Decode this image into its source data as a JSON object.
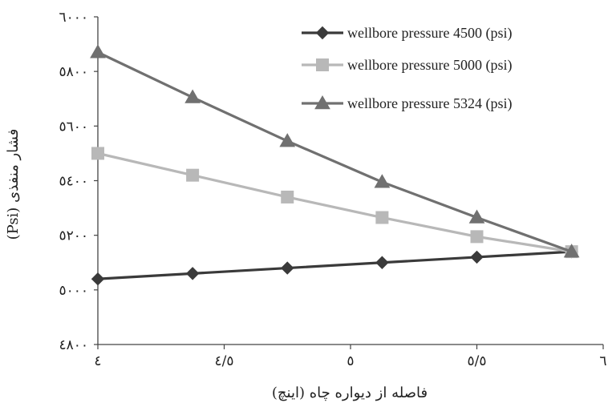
{
  "chart_data": {
    "type": "line",
    "xlabel": "فاصله از دیواره چاه (اینچ)",
    "ylabel": "فشار منفذی (Psi)",
    "x_tick_labels": [
      "٤",
      "٤/٥",
      "٥",
      "٥/٥",
      "٦"
    ],
    "y_tick_labels": [
      "٤٨٠٠",
      "٥٠٠٠",
      "٥٢٠٠",
      "٥٤٠٠",
      "٥٦٠٠",
      "٥٨٠٠",
      "٦٠٠٠"
    ],
    "xlim": [
      4,
      6
    ],
    "ylim": [
      4800,
      6000
    ],
    "grid": false,
    "legend_position": "top-right",
    "x": [
      4.0,
      4.375,
      4.75,
      5.125,
      5.5,
      5.875
    ],
    "series": [
      {
        "name": "wellbore pressure 4500 (psi)",
        "marker": "diamond",
        "color": "#3a3a3a",
        "values": [
          5040,
          5060,
          5080,
          5100,
          5120,
          5140
        ]
      },
      {
        "name": "wellbore pressure 5000 (psi)",
        "marker": "square",
        "color": "#b8b8b8",
        "values": [
          5500,
          5420,
          5340,
          5265,
          5195,
          5140
        ]
      },
      {
        "name": "wellbore pressure 5324 (psi)",
        "marker": "triangle",
        "color": "#707070",
        "values": [
          5870,
          5705,
          5545,
          5395,
          5265,
          5140
        ]
      }
    ]
  }
}
